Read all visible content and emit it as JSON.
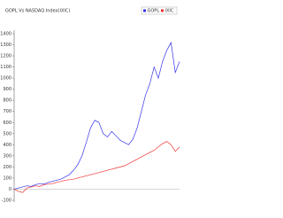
{
  "chart_data": {
    "type": "line",
    "title": "GOPL Vs NASDAQ Index(IXIC)",
    "categories": [
      null,
      null,
      null,
      null,
      null,
      null,
      null,
      null,
      null,
      null,
      null,
      null,
      null,
      null,
      null,
      null,
      null,
      null,
      null,
      null,
      null,
      null,
      null,
      null,
      null,
      null,
      null,
      null,
      null,
      null,
      null,
      null,
      null,
      null,
      null,
      null,
      null,
      null,
      null,
      null
    ],
    "series": [
      {
        "name": "GOPL",
        "color": "#3333ee",
        "values": [
          0,
          10,
          20,
          30,
          25,
          40,
          50,
          45,
          60,
          70,
          80,
          90,
          110,
          130,
          170,
          220,
          300,
          420,
          550,
          620,
          600,
          500,
          470,
          520,
          480,
          440,
          420,
          400,
          450,
          550,
          700,
          850,
          950,
          1100,
          1000,
          1150,
          1250,
          1320,
          1050,
          1150
        ]
      },
      {
        "name": "IXIC",
        "color": "#ee3333",
        "values": [
          0,
          -20,
          -30,
          10,
          20,
          30,
          25,
          40,
          45,
          50,
          60,
          70,
          80,
          85,
          90,
          100,
          110,
          120,
          130,
          140,
          150,
          160,
          170,
          180,
          190,
          200,
          210,
          230,
          250,
          270,
          290,
          310,
          330,
          350,
          380,
          410,
          430,
          400,
          340,
          380
        ]
      }
    ],
    "ylim": [
      -100,
      1400
    ],
    "yticks": [
      -100,
      0,
      100,
      200,
      300,
      400,
      500,
      600,
      700,
      800,
      900,
      1000,
      1100,
      1200,
      1300,
      1400
    ],
    "legend": "top-right"
  }
}
